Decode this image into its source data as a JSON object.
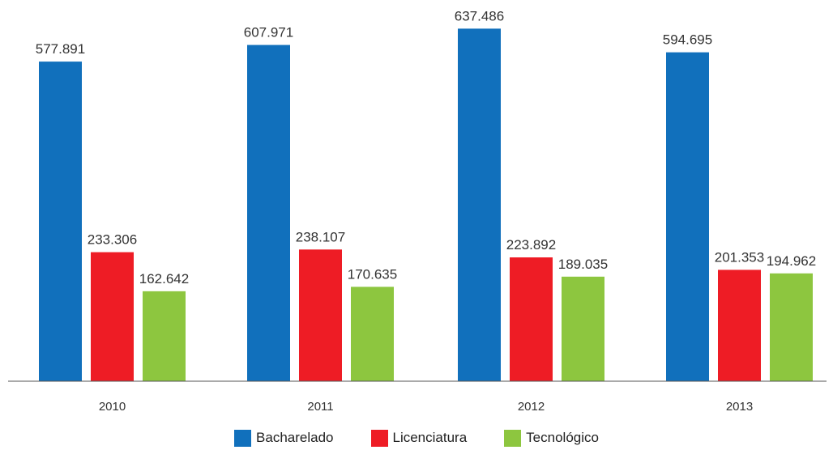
{
  "chart_data": {
    "type": "bar",
    "categories": [
      "2010",
      "2011",
      "2012",
      "2013"
    ],
    "series": [
      {
        "name": "Bacharelado",
        "color": "#1170BC",
        "values": [
          577891,
          607971,
          637486,
          594695
        ],
        "labels": [
          "577.891",
          "607.971",
          "637.486",
          "594.695"
        ]
      },
      {
        "name": "Licenciatura",
        "color": "#EE1C25",
        "values": [
          233306,
          238107,
          223892,
          201353
        ],
        "labels": [
          "233.306",
          "238.107",
          "223.892",
          "201.353"
        ]
      },
      {
        "name": "Tecnológico",
        "color": "#8DC63F",
        "values": [
          162642,
          170635,
          189035,
          194962
        ],
        "labels": [
          "162.642",
          "170.635",
          "189.035",
          "194.962"
        ]
      }
    ],
    "title": "",
    "xlabel": "",
    "ylabel": "",
    "ylim": [
      0,
      660000
    ],
    "grid": false,
    "legend_position": "bottom"
  }
}
